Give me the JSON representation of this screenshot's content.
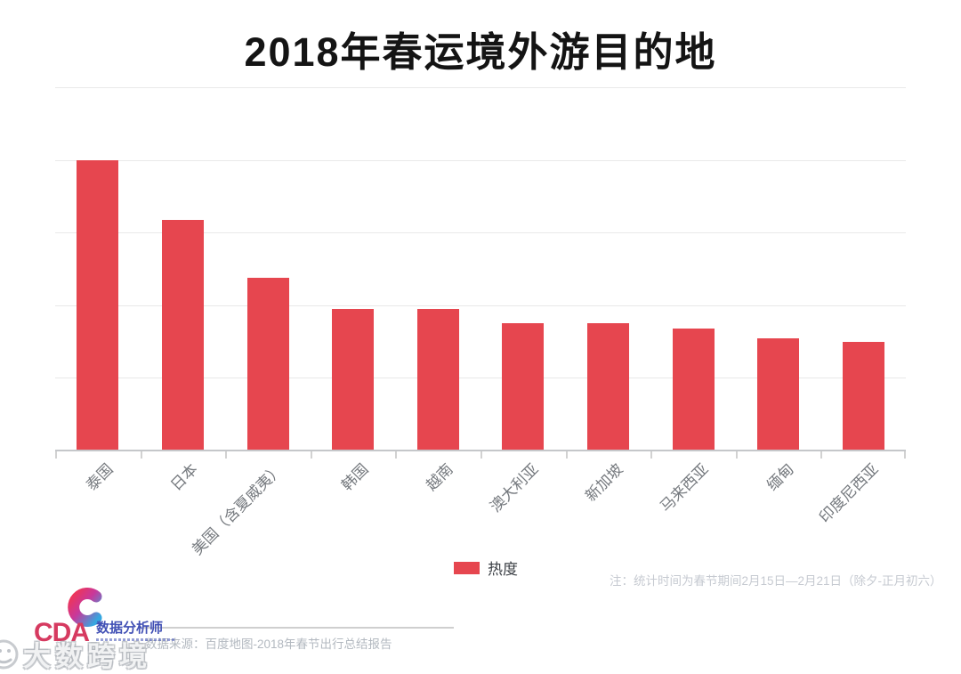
{
  "header": {
    "title": "2018年春运境外游目的地"
  },
  "chart_data": {
    "type": "bar",
    "title": "2018年春运境外游目的地",
    "categories": [
      "泰国",
      "日本",
      "美国（含夏威夷）",
      "韩国",
      "越南",
      "澳大利亚",
      "新加坡",
      "马来西亚",
      "缅甸",
      "印度尼西亚"
    ],
    "series": [
      {
        "name": "热度",
        "values": [
          80,
          63.5,
          47.5,
          39,
          39,
          35,
          35,
          33.5,
          31,
          30
        ]
      }
    ],
    "xlabel": "",
    "ylabel": "",
    "ylim": [
      0,
      100
    ],
    "gridline_values": [
      20,
      40,
      60,
      80,
      100
    ],
    "grid": true,
    "y_axis_labels_visible": false,
    "x_label_rotation_deg": 45,
    "legend_position": "bottom-center",
    "bar_color": "#e6464f"
  },
  "legend": {
    "label": "热度",
    "swatch_color": "#e6464f"
  },
  "note": "注：统计时间为春节期间2月15日—2月21日（除夕-正月初六）",
  "footer": {
    "source": "数据来源：百度地图-2018年春节出行总结报告",
    "logo": {
      "brand": "CDA",
      "brand_cn": "数据分析师"
    },
    "watermark": "大数跨境"
  },
  "colors": {
    "bar": "#e6464f",
    "title_text": "#141414",
    "axis_label": "#75797e",
    "note_text": "#c6cad1",
    "source_text": "#b3b9c0",
    "brand_red": "#d63a60",
    "brand_blue": "#4150b5",
    "gridline": "#e9e9e9"
  },
  "icons": {
    "logo_mark": "cda-c-gradient-arc",
    "legend_swatch": "red-square",
    "watermark_face": "thinking-face-outline"
  }
}
